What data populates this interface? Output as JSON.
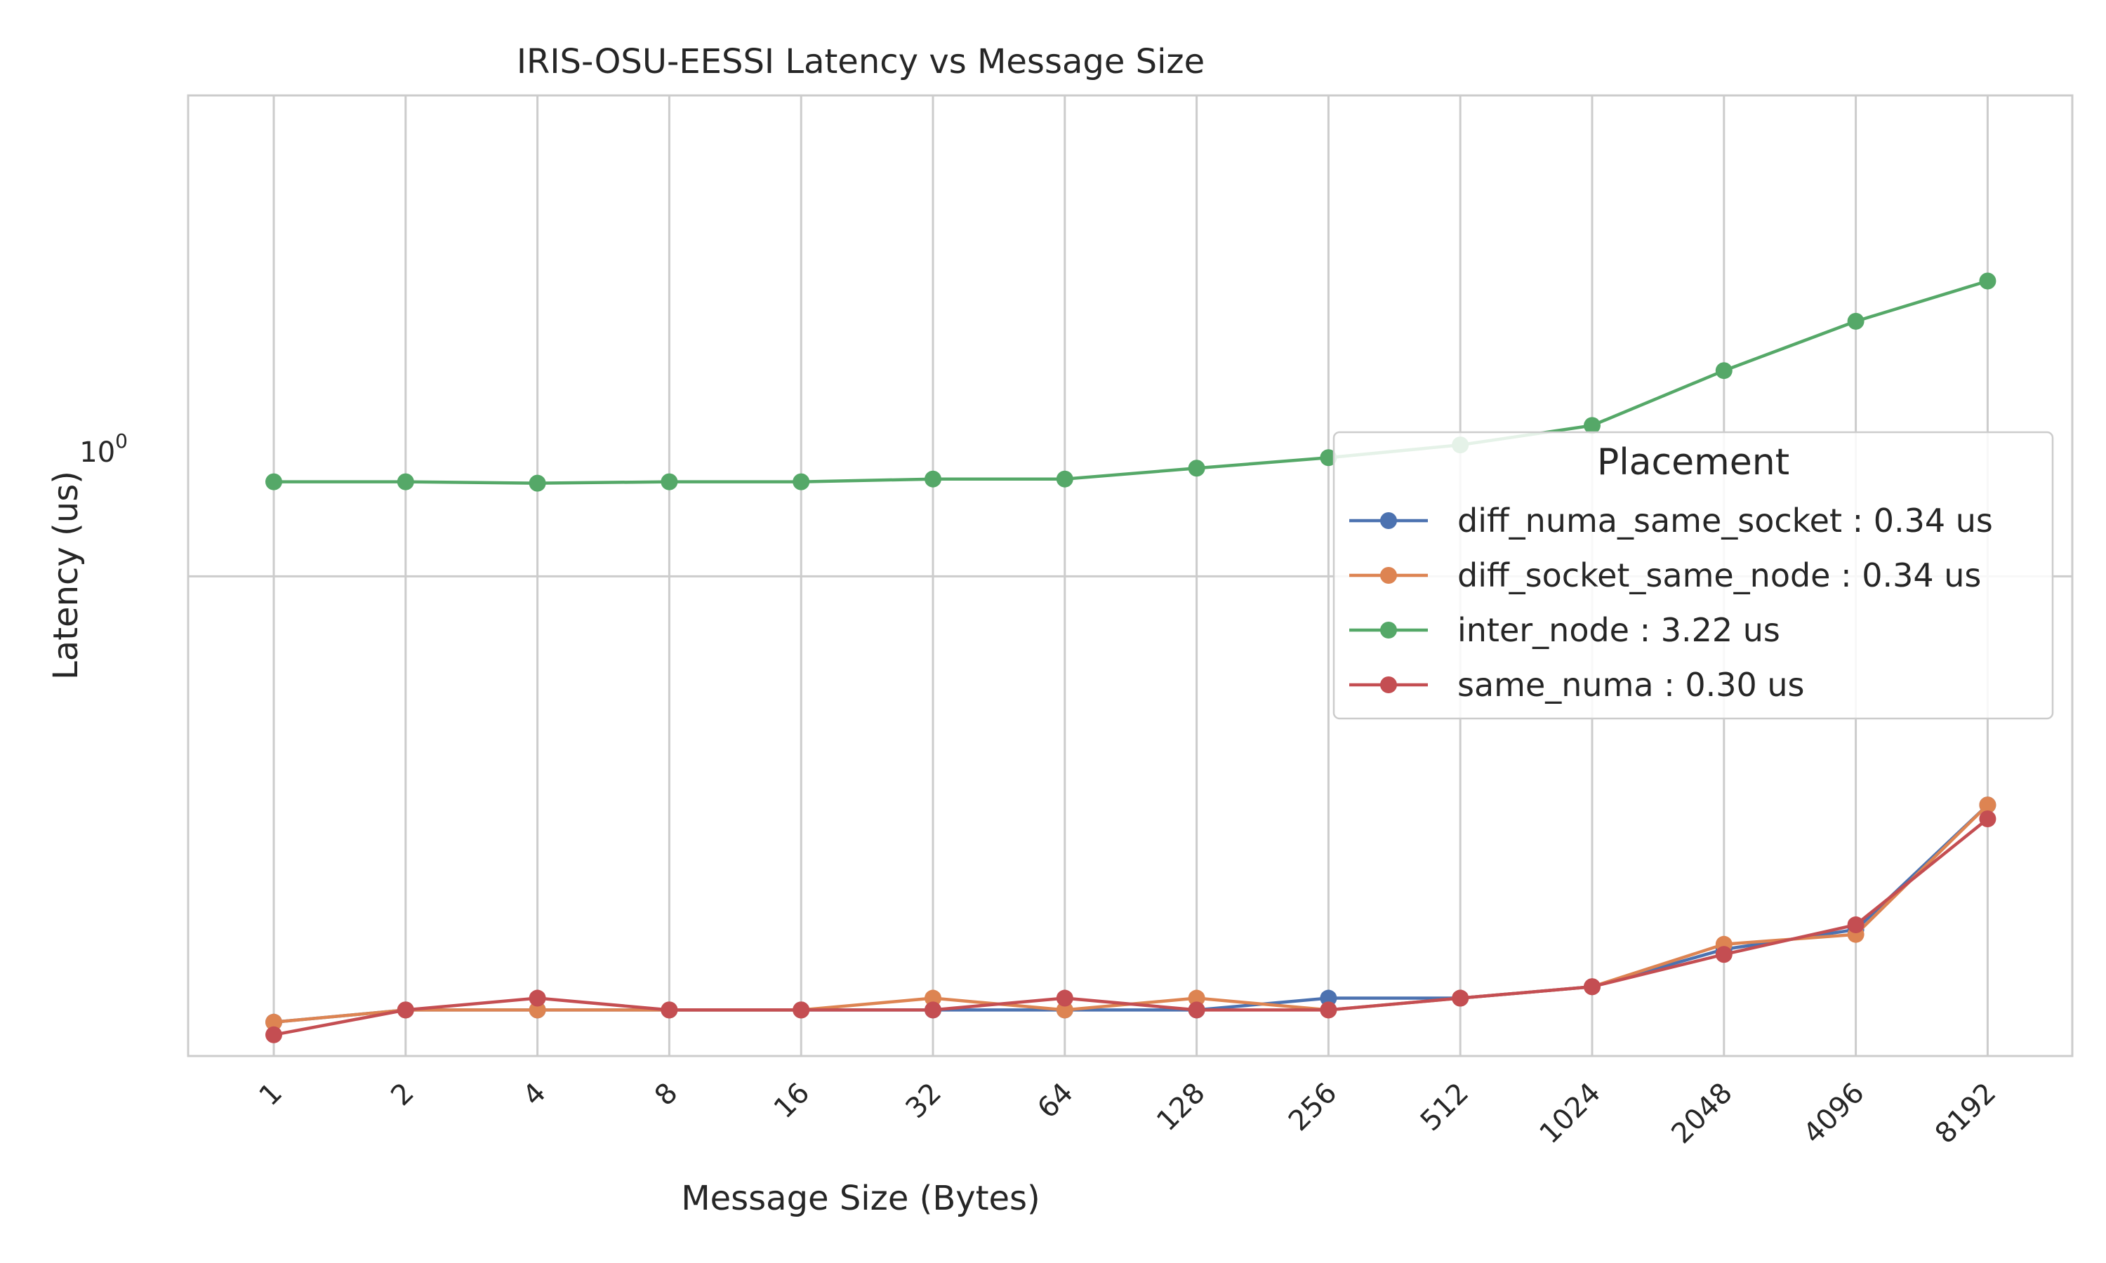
{
  "chart_data": {
    "type": "line",
    "title": "IRIS-OSU-EESSI Latency vs Message Size",
    "xlabel": "Message Size (Bytes)",
    "ylabel": "Latency (us)",
    "yscale": "log",
    "ylim": [
      0.264,
      3.8
    ],
    "ytick_label": {
      "base": "10",
      "exp": "0"
    },
    "grid": true,
    "categories": [
      "1",
      "2",
      "4",
      "8",
      "16",
      "32",
      "64",
      "128",
      "256",
      "512",
      "1024",
      "2048",
      "4096",
      "8192"
    ],
    "legend": {
      "title": "Placement",
      "position": "center-right"
    },
    "series": [
      {
        "name": "diff_numa_same_socket : 0.34 us",
        "color": "#4c72b0",
        "values": [
          0.29,
          0.3,
          0.3,
          0.3,
          0.3,
          0.3,
          0.3,
          0.3,
          0.31,
          0.31,
          0.32,
          0.355,
          0.375,
          0.53
        ]
      },
      {
        "name": "diff_socket_same_node : 0.34 us",
        "color": "#dd8452",
        "values": [
          0.29,
          0.3,
          0.3,
          0.3,
          0.3,
          0.31,
          0.3,
          0.31,
          0.3,
          0.31,
          0.32,
          0.36,
          0.37,
          0.53
        ]
      },
      {
        "name": "inter_node : 3.22 us",
        "color": "#55a868",
        "values": [
          1.3,
          1.3,
          1.295,
          1.3,
          1.3,
          1.31,
          1.31,
          1.35,
          1.39,
          1.44,
          1.52,
          1.77,
          2.03,
          2.27
        ]
      },
      {
        "name": "same_numa : 0.30 us",
        "color": "#c44e52",
        "values": [
          0.28,
          0.3,
          0.31,
          0.3,
          0.3,
          0.3,
          0.31,
          0.3,
          0.3,
          0.31,
          0.32,
          0.35,
          0.38,
          0.51
        ]
      }
    ]
  }
}
